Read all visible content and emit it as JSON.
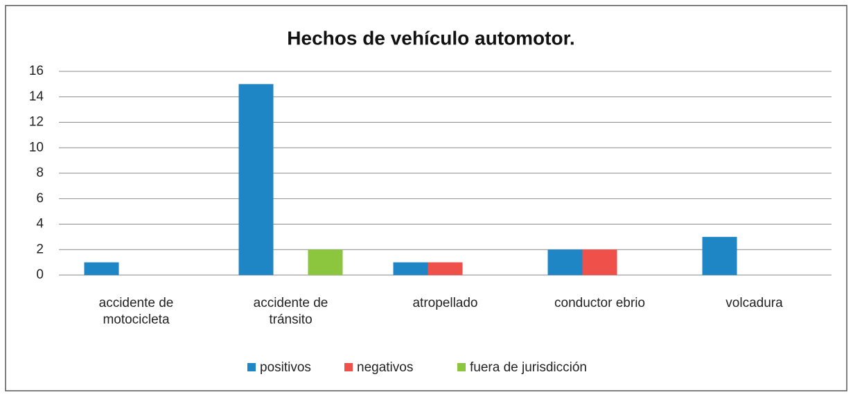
{
  "chart_data": {
    "type": "bar",
    "title": "Hechos de vehículo automotor.",
    "categories": [
      "accidente de motocicleta",
      "accidente de tránsito",
      "atropellado",
      "conductor ebrio",
      "volcadura"
    ],
    "series": [
      {
        "name": "positivos",
        "color": "#1f86c5",
        "values": [
          1,
          15,
          1,
          2,
          3
        ]
      },
      {
        "name": "negativos",
        "color": "#ef5049",
        "values": [
          0,
          0,
          1,
          2,
          0
        ]
      },
      {
        "name": "fuera de jurisdicción",
        "color": "#8cc63f",
        "values": [
          0,
          2,
          0,
          0,
          0
        ]
      }
    ],
    "ylim": [
      0,
      16
    ],
    "yticks": [
      0,
      2,
      4,
      6,
      8,
      10,
      12,
      14,
      16
    ],
    "grid": true,
    "legend": "bottom"
  }
}
